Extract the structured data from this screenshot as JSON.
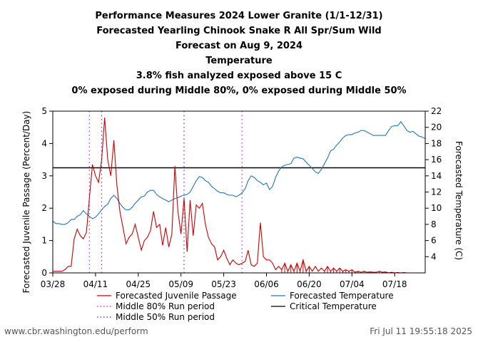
{
  "titles": [
    "Performance Measures 2024 Lower Granite (1/1-12/31)",
    "Forecasted Yearling Chinook Snake R All Spr/Sum Wild",
    "Forecast on Aug 9, 2024",
    "Temperature",
    "3.8% fish analyzed exposed above 15 C",
    "0% exposed during Middle 80%, 0% exposed during Middle 50%"
  ],
  "footer": {
    "left": "www.cbr.washington.edu/perform",
    "right": "Fri Jul 11 19:55:18 2025"
  },
  "colors": {
    "passage": "#cc0000",
    "temperature": "#1f77b4",
    "mid80": "#cc33cc",
    "mid50": "#8a2be2",
    "critical": "#000000"
  },
  "chart_data": {
    "type": "line",
    "x_axis": {
      "ticks": [
        "03/28",
        "04/11",
        "04/25",
        "05/09",
        "05/23",
        "06/06",
        "06/20",
        "07/04",
        "07/18"
      ],
      "range_days_from_0328": [
        0,
        122
      ]
    },
    "y_left": {
      "label": "Forecasted Juvenile Passage (Percent/Day)",
      "range": [
        0,
        5
      ],
      "ticks": [
        0,
        1,
        2,
        3,
        4,
        5
      ]
    },
    "y_right": {
      "label": "Forecasted Temperature (C)",
      "range": [
        2,
        22
      ],
      "ticks": [
        4,
        6,
        8,
        10,
        12,
        14,
        16,
        18,
        20,
        22
      ]
    },
    "critical_temperature": 15,
    "legend": [
      {
        "label": "Forecasted Juvenile Passage",
        "style": "line",
        "color": "#cc0000"
      },
      {
        "label": "Forecasted Temperature",
        "style": "line",
        "color": "#1f77b4"
      },
      {
        "label": "Middle 80% Run period",
        "style": "dotted",
        "color": "#cc33cc"
      },
      {
        "label": "Critical Temperature",
        "style": "line",
        "color": "#000000"
      },
      {
        "label": "Middle 50% Run period",
        "style": "dotted",
        "color": "#8a2be2"
      }
    ],
    "middle80_dates": [
      "04/09",
      "05/29"
    ],
    "middle50_dates": [
      "04/13",
      "05/10"
    ],
    "series": [
      {
        "name": "Forecasted Juvenile Passage",
        "axis": "left",
        "points": [
          [
            "03/28",
            0.05
          ],
          [
            "03/29",
            0.05
          ],
          [
            "03/30",
            0.05
          ],
          [
            "03/31",
            0.05
          ],
          [
            "04/01",
            0.1
          ],
          [
            "04/02",
            0.2
          ],
          [
            "04/03",
            0.2
          ],
          [
            "04/04",
            1.05
          ],
          [
            "04/05",
            1.35
          ],
          [
            "04/06",
            1.15
          ],
          [
            "04/07",
            1.05
          ],
          [
            "04/08",
            1.25
          ],
          [
            "04/09",
            2.3
          ],
          [
            "04/10",
            3.35
          ],
          [
            "04/11",
            3.0
          ],
          [
            "04/12",
            2.8
          ],
          [
            "04/13",
            3.5
          ],
          [
            "04/14",
            4.8
          ],
          [
            "04/15",
            3.5
          ],
          [
            "04/16",
            3.0
          ],
          [
            "04/17",
            4.1
          ],
          [
            "04/18",
            2.7
          ],
          [
            "04/19",
            1.9
          ],
          [
            "04/20",
            1.4
          ],
          [
            "04/21",
            0.9
          ],
          [
            "04/22",
            1.1
          ],
          [
            "04/23",
            1.2
          ],
          [
            "04/24",
            1.5
          ],
          [
            "04/25",
            1.1
          ],
          [
            "04/26",
            0.7
          ],
          [
            "04/27",
            1.0
          ],
          [
            "04/28",
            1.1
          ],
          [
            "04/29",
            1.3
          ],
          [
            "04/30",
            1.9
          ],
          [
            "05/01",
            1.4
          ],
          [
            "05/02",
            1.5
          ],
          [
            "05/03",
            0.85
          ],
          [
            "05/04",
            1.4
          ],
          [
            "05/05",
            0.8
          ],
          [
            "05/06",
            1.2
          ],
          [
            "05/07",
            3.3
          ],
          [
            "05/08",
            1.9
          ],
          [
            "05/09",
            1.2
          ],
          [
            "05/10",
            2.3
          ],
          [
            "05/11",
            0.65
          ],
          [
            "05/12",
            2.25
          ],
          [
            "05/13",
            1.15
          ],
          [
            "05/14",
            2.1
          ],
          [
            "05/15",
            2.0
          ],
          [
            "05/16",
            2.15
          ],
          [
            "05/17",
            1.5
          ],
          [
            "05/18",
            1.1
          ],
          [
            "05/19",
            0.9
          ],
          [
            "05/20",
            0.8
          ],
          [
            "05/21",
            0.4
          ],
          [
            "05/22",
            0.5
          ],
          [
            "05/23",
            0.7
          ],
          [
            "05/24",
            0.45
          ],
          [
            "05/25",
            0.25
          ],
          [
            "05/26",
            0.4
          ],
          [
            "05/27",
            0.3
          ],
          [
            "05/28",
            0.25
          ],
          [
            "05/29",
            0.3
          ],
          [
            "05/30",
            0.35
          ],
          [
            "05/31",
            0.7
          ],
          [
            "06/01",
            0.25
          ],
          [
            "06/02",
            0.2
          ],
          [
            "06/03",
            0.3
          ],
          [
            "06/04",
            1.55
          ],
          [
            "06/05",
            0.5
          ],
          [
            "06/06",
            0.4
          ],
          [
            "06/07",
            0.4
          ],
          [
            "06/08",
            0.3
          ],
          [
            "06/09",
            0.1
          ],
          [
            "06/10",
            0.2
          ],
          [
            "06/11",
            0.1
          ],
          [
            "06/12",
            0.3
          ],
          [
            "06/13",
            0.05
          ],
          [
            "06/14",
            0.25
          ],
          [
            "06/15",
            0.05
          ],
          [
            "06/16",
            0.3
          ],
          [
            "06/17",
            0.05
          ],
          [
            "06/18",
            0.4
          ],
          [
            "06/19",
            0.05
          ],
          [
            "06/20",
            0.2
          ],
          [
            "06/21",
            0.05
          ],
          [
            "06/22",
            0.2
          ],
          [
            "06/23",
            0.05
          ],
          [
            "06/24",
            0.15
          ],
          [
            "06/25",
            0.05
          ],
          [
            "06/26",
            0.2
          ],
          [
            "06/27",
            0.05
          ],
          [
            "06/28",
            0.15
          ],
          [
            "06/29",
            0.05
          ],
          [
            "06/30",
            0.15
          ],
          [
            "07/01",
            0.05
          ],
          [
            "07/02",
            0.1
          ],
          [
            "07/03",
            0.05
          ],
          [
            "07/04",
            0.1
          ],
          [
            "07/05",
            0.02
          ],
          [
            "07/06",
            0.05
          ],
          [
            "07/07",
            0.02
          ],
          [
            "07/08",
            0.05
          ],
          [
            "07/09",
            0.02
          ],
          [
            "07/10",
            0.03
          ],
          [
            "07/11",
            0.02
          ],
          [
            "07/12",
            0.02
          ],
          [
            "07/13",
            0.05
          ],
          [
            "07/14",
            0.02
          ],
          [
            "07/15",
            0.03
          ],
          [
            "07/16",
            0.0
          ],
          [
            "07/17",
            0.02
          ],
          [
            "07/18",
            0.0
          ],
          [
            "07/19",
            0.01
          ],
          [
            "07/20",
            0.0
          ],
          [
            "07/21",
            0.01
          ],
          [
            "07/22",
            0.0
          ],
          [
            "07/23",
            0.0
          ],
          [
            "07/24",
            0.0
          ],
          [
            "07/25",
            0.0
          ],
          [
            "07/26",
            0.0
          ],
          [
            "07/27",
            0.0
          ],
          [
            "07/28",
            0.0
          ]
        ]
      },
      {
        "name": "Forecasted Temperature",
        "axis": "right",
        "points": [
          [
            "03/28",
            8.4
          ],
          [
            "03/29",
            8.1
          ],
          [
            "03/30",
            8.1
          ],
          [
            "03/31",
            8.0
          ],
          [
            "04/01",
            8.0
          ],
          [
            "04/02",
            8.2
          ],
          [
            "04/03",
            8.6
          ],
          [
            "04/04",
            8.6
          ],
          [
            "04/05",
            9.0
          ],
          [
            "04/06",
            9.2
          ],
          [
            "04/07",
            9.7
          ],
          [
            "04/08",
            9.3
          ],
          [
            "04/09",
            9.0
          ],
          [
            "04/10",
            8.7
          ],
          [
            "04/11",
            8.9
          ],
          [
            "04/12",
            9.3
          ],
          [
            "04/13",
            9.8
          ],
          [
            "04/14",
            10.2
          ],
          [
            "04/15",
            10.5
          ],
          [
            "04/16",
            11.2
          ],
          [
            "04/17",
            11.6
          ],
          [
            "04/18",
            11.2
          ],
          [
            "04/19",
            10.6
          ],
          [
            "04/20",
            10.1
          ],
          [
            "04/21",
            9.8
          ],
          [
            "04/22",
            9.8
          ],
          [
            "04/23",
            10.1
          ],
          [
            "04/24",
            10.6
          ],
          [
            "04/25",
            11.0
          ],
          [
            "04/26",
            11.4
          ],
          [
            "04/27",
            11.5
          ],
          [
            "04/28",
            12.0
          ],
          [
            "04/29",
            12.2
          ],
          [
            "04/30",
            12.2
          ],
          [
            "05/01",
            11.7
          ],
          [
            "05/02",
            11.4
          ],
          [
            "05/03",
            11.2
          ],
          [
            "05/04",
            11.0
          ],
          [
            "05/05",
            10.8
          ],
          [
            "05/06",
            11.0
          ],
          [
            "05/07",
            11.2
          ],
          [
            "05/08",
            11.3
          ],
          [
            "05/09",
            11.5
          ],
          [
            "05/10",
            11.6
          ],
          [
            "05/11",
            11.7
          ],
          [
            "05/12",
            12.0
          ],
          [
            "05/13",
            12.7
          ],
          [
            "05/14",
            13.4
          ],
          [
            "05/15",
            13.9
          ],
          [
            "05/16",
            13.8
          ],
          [
            "05/17",
            13.4
          ],
          [
            "05/18",
            13.2
          ],
          [
            "05/19",
            12.7
          ],
          [
            "05/20",
            12.4
          ],
          [
            "05/21",
            12.1
          ],
          [
            "05/22",
            11.9
          ],
          [
            "05/23",
            11.9
          ],
          [
            "05/24",
            11.7
          ],
          [
            "05/25",
            11.6
          ],
          [
            "05/26",
            11.6
          ],
          [
            "05/27",
            11.4
          ],
          [
            "05/28",
            11.6
          ],
          [
            "05/29",
            11.9
          ],
          [
            "05/30",
            12.4
          ],
          [
            "05/31",
            13.4
          ],
          [
            "06/01",
            14.0
          ],
          [
            "06/02",
            13.8
          ],
          [
            "06/03",
            13.4
          ],
          [
            "06/04",
            13.2
          ],
          [
            "06/05",
            12.9
          ],
          [
            "06/06",
            13.1
          ],
          [
            "06/07",
            12.3
          ],
          [
            "06/08",
            12.7
          ],
          [
            "06/09",
            13.8
          ],
          [
            "06/10",
            14.6
          ],
          [
            "06/11",
            15.1
          ],
          [
            "06/12",
            15.3
          ],
          [
            "06/13",
            15.4
          ],
          [
            "06/14",
            15.5
          ],
          [
            "06/15",
            16.2
          ],
          [
            "06/16",
            16.3
          ],
          [
            "06/17",
            16.2
          ],
          [
            "06/18",
            16.1
          ],
          [
            "06/19",
            15.7
          ],
          [
            "06/20",
            15.3
          ],
          [
            "06/21",
            14.9
          ],
          [
            "06/22",
            14.5
          ],
          [
            "06/23",
            14.3
          ],
          [
            "06/24",
            14.8
          ],
          [
            "06/25",
            15.5
          ],
          [
            "06/26",
            16.2
          ],
          [
            "06/27",
            17.1
          ],
          [
            "06/28",
            17.3
          ],
          [
            "06/29",
            17.8
          ],
          [
            "06/30",
            18.2
          ],
          [
            "07/01",
            18.7
          ],
          [
            "07/02",
            19.0
          ],
          [
            "07/03",
            19.1
          ],
          [
            "07/04",
            19.1
          ],
          [
            "07/05",
            19.3
          ],
          [
            "07/06",
            19.4
          ],
          [
            "07/07",
            19.6
          ],
          [
            "07/08",
            19.6
          ],
          [
            "07/09",
            19.4
          ],
          [
            "07/10",
            19.2
          ],
          [
            "07/11",
            19.0
          ],
          [
            "07/12",
            19.0
          ],
          [
            "07/13",
            19.0
          ],
          [
            "07/14",
            19.0
          ],
          [
            "07/15",
            19.0
          ],
          [
            "07/16",
            19.6
          ],
          [
            "07/17",
            20.1
          ],
          [
            "07/18",
            20.2
          ],
          [
            "07/19",
            20.2
          ],
          [
            "07/20",
            20.7
          ],
          [
            "07/21",
            20.2
          ],
          [
            "07/22",
            19.6
          ],
          [
            "07/23",
            19.4
          ],
          [
            "07/24",
            19.5
          ],
          [
            "07/25",
            19.2
          ],
          [
            "07/26",
            18.9
          ],
          [
            "07/27",
            18.8
          ],
          [
            "07/28",
            18.6
          ]
        ]
      }
    ]
  }
}
